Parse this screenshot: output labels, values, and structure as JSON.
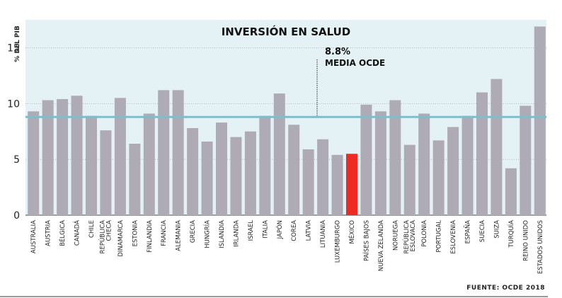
{
  "chart_data": {
    "type": "bar",
    "title": "INVERSIÓN EN SALUD",
    "ylabel": "% DEL PIB",
    "ylim": [
      0,
      17.5
    ],
    "yticks": [
      0,
      5,
      10,
      15
    ],
    "grid": true,
    "categories": [
      "AUSTRALIA",
      "AUSTRIA",
      "BÉLGICA",
      "CANADÁ",
      "CHILE",
      "REPÚBLICA CHECA",
      "DINAMARCA",
      "ESTONIA",
      "FINLANDIA",
      "FRANCIA",
      "ALEMANIA",
      "GRECIA",
      "HUNGRÍA",
      "ISLANDIA",
      "IRLANDA",
      "ISRAEL",
      "ITALIA",
      "JAPÓN",
      "COREA",
      "LATVIA",
      "LITUANIA",
      "LUXEMBURGO",
      "MÉXICO",
      "PAÍSES BAJOS",
      "NUEVA ZELANDA",
      "NORUEGA",
      "REPÚBLICA ESLOVACA",
      "POLONIA",
      "PORTUGAL",
      "ESLOVENIA",
      "ESPAÑA",
      "SUECIA",
      "SUIZA",
      "TURQUÍA",
      "REINO UNIDO",
      "ESTADOS UNIDOS"
    ],
    "values": [
      9.3,
      10.3,
      10.4,
      10.7,
      8.9,
      7.6,
      10.5,
      6.4,
      9.1,
      11.2,
      11.2,
      7.8,
      6.6,
      8.3,
      7.0,
      7.5,
      8.9,
      10.9,
      8.1,
      5.9,
      6.8,
      5.4,
      5.5,
      9.9,
      9.3,
      10.3,
      6.3,
      9.1,
      6.7,
      7.9,
      8.9,
      11.0,
      12.2,
      4.2,
      9.8,
      16.9
    ],
    "highlight": "MÉXICO",
    "colors": {
      "bar": "#aeabb6",
      "highlight": "#ee2a25",
      "average": "#7cbfcc",
      "plot_bg": "#e4f2f6"
    },
    "average": {
      "value": 8.8,
      "value_label": "8.8%",
      "label": "MEDIA OCDE"
    }
  },
  "footer": {
    "source": "FUENTE: OCDE 2018"
  }
}
